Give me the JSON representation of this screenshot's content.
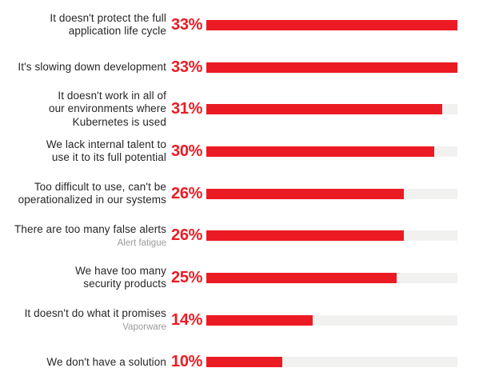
{
  "chart_data": {
    "type": "bar",
    "orientation": "horizontal",
    "unit": "%",
    "scale_max": 33,
    "grid": false,
    "legend": null,
    "title": "",
    "xlabel": "",
    "ylabel": "",
    "categories": [
      "It doesn't protect the full application life cycle",
      "It's slowing down development",
      "It doesn't work in all of our environments where Kubernetes is used",
      "We lack internal talent to use it to its full potential",
      "Too difficult to use, can't be operationalized in our systems",
      "There are too many false alerts",
      "We have too many security products",
      "It doesn't do what it promises",
      "We don't have a solution"
    ],
    "values": [
      33,
      33,
      31,
      30,
      26,
      26,
      25,
      14,
      10
    ],
    "rows": [
      {
        "label": "It doesn't protect the full\napplication life cycle",
        "sublabel": "",
        "value": 33,
        "value_label": "33%"
      },
      {
        "label": "It's slowing down development",
        "sublabel": "",
        "value": 33,
        "value_label": "33%"
      },
      {
        "label": "It doesn't work in all of\nour environments where\nKubernetes is used",
        "sublabel": "",
        "value": 31,
        "value_label": "31%"
      },
      {
        "label": "We lack internal talent to\nuse it to its full potential",
        "sublabel": "",
        "value": 30,
        "value_label": "30%"
      },
      {
        "label": "Too difficult to use, can't be\noperationalized in our systems",
        "sublabel": "",
        "value": 26,
        "value_label": "26%"
      },
      {
        "label": "There are too many false alerts",
        "sublabel": "Alert fatigue",
        "value": 26,
        "value_label": "26%"
      },
      {
        "label": "We have too many\nsecurity products",
        "sublabel": "",
        "value": 25,
        "value_label": "25%"
      },
      {
        "label": "It doesn't do what it promises",
        "sublabel": "Vaporware",
        "value": 14,
        "value_label": "14%"
      },
      {
        "label": "We don't have a solution",
        "sublabel": "",
        "value": 10,
        "value_label": "10%"
      }
    ],
    "colors": {
      "bar": "#ec1b23",
      "track": "#f1f1f0",
      "label": "#262626",
      "sublabel": "#9b9b9b",
      "background": "#ffffff"
    }
  }
}
